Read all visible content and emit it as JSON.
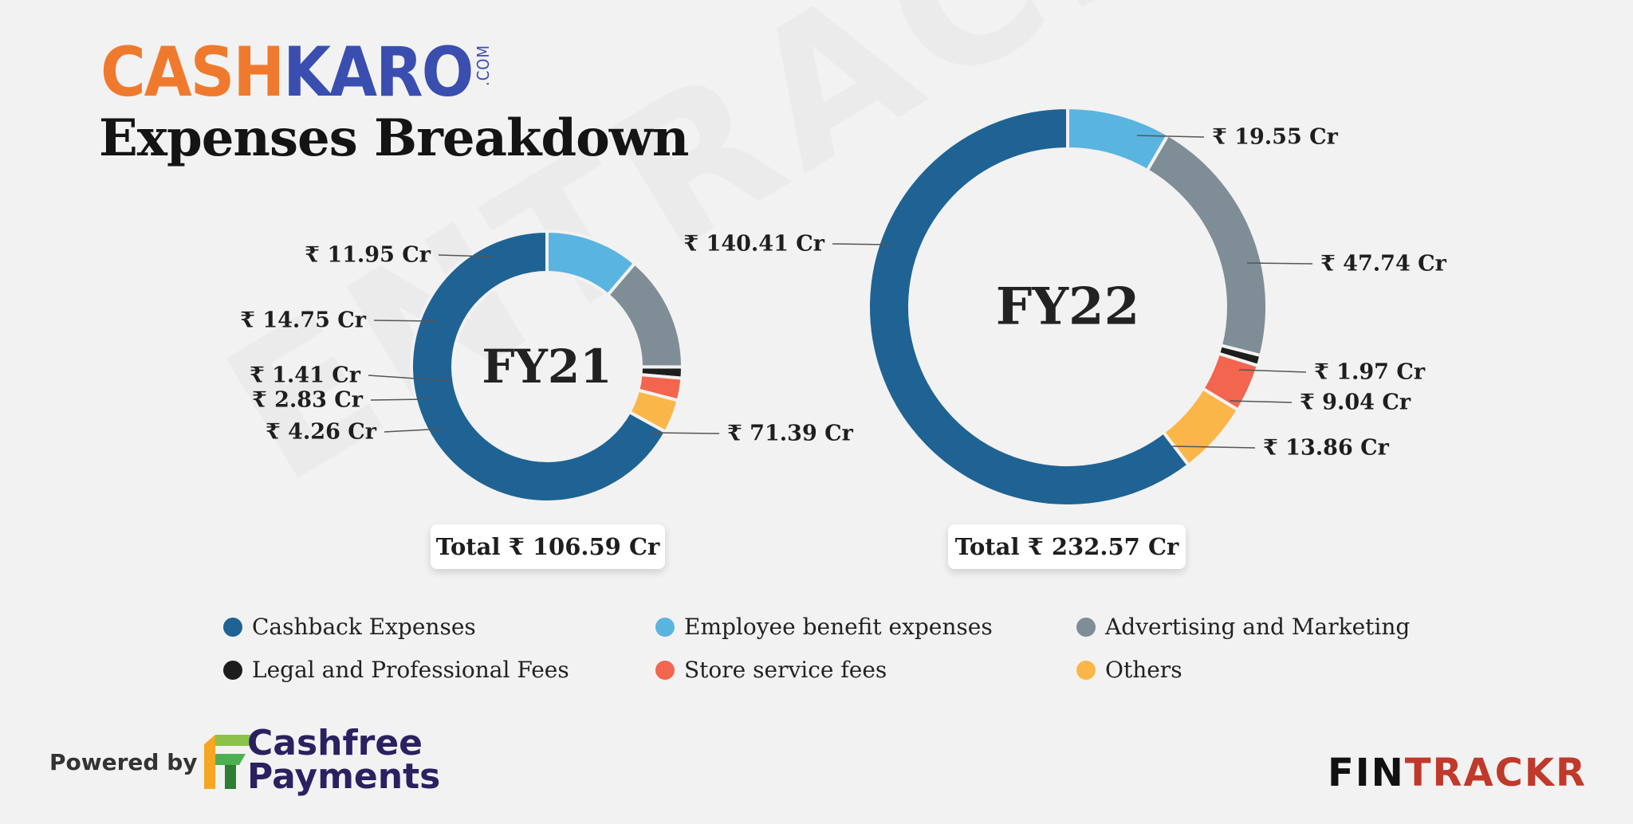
{
  "brand": {
    "logo_part1": "CASH",
    "logo_part2": "KARO",
    "logo_suffix": ".COM"
  },
  "page_title": "Expenses Breakdown",
  "watermark": "ENTRACKR",
  "colors": {
    "cashback": "#1f6394",
    "employee": "#5ab4e0",
    "advertising": "#7f8d96",
    "legal": "#1d1d1d",
    "store": "#f2654e",
    "others": "#fbb649"
  },
  "legend": [
    {
      "label": "Cashback Expenses",
      "color": "#1f6394"
    },
    {
      "label": "Employee benefit expenses",
      "color": "#5ab4e0"
    },
    {
      "label": "Advertising and Marketing",
      "color": "#7f8d96"
    },
    {
      "label": "Legal and Professional Fees",
      "color": "#1d1d1d"
    },
    {
      "label": "Store service fees",
      "color": "#f2654e"
    },
    {
      "label": "Others",
      "color": "#fbb649"
    }
  ],
  "chart_data": [
    {
      "type": "pie",
      "title": "FY21",
      "total_label": "Total ₹ 106.59 Cr",
      "categories": [
        "Cashback Expenses",
        "Employee benefit expenses",
        "Advertising and Marketing",
        "Legal and Professional Fees",
        "Store service fees",
        "Others"
      ],
      "values": [
        71.39,
        11.95,
        14.75,
        1.41,
        2.83,
        4.26
      ],
      "value_labels": [
        "₹ 71.39 Cr",
        "₹ 11.95 Cr",
        "₹ 14.75 Cr",
        "₹ 1.41 Cr",
        "₹ 2.83 Cr",
        "₹ 4.26 Cr"
      ],
      "unit": "₹ Cr"
    },
    {
      "type": "pie",
      "title": "FY22",
      "total_label": "Total ₹ 232.57 Cr",
      "categories": [
        "Cashback Expenses",
        "Employee benefit expenses",
        "Advertising and Marketing",
        "Legal and Professional Fees",
        "Store service fees",
        "Others"
      ],
      "values": [
        140.41,
        19.55,
        47.74,
        1.97,
        9.04,
        13.86
      ],
      "value_labels": [
        "₹ 140.41 Cr",
        "₹ 19.55 Cr",
        "₹ 47.74 Cr",
        "₹ 1.97 Cr",
        "₹ 9.04 Cr",
        "₹ 13.86 Cr"
      ],
      "unit": "₹ Cr"
    }
  ],
  "footer": {
    "powered_by": "Powered by",
    "sponsor_line1": "Cashfree",
    "sponsor_line2": "Payments",
    "brand_part1": "FIN",
    "brand_part2": "TRACKR"
  }
}
